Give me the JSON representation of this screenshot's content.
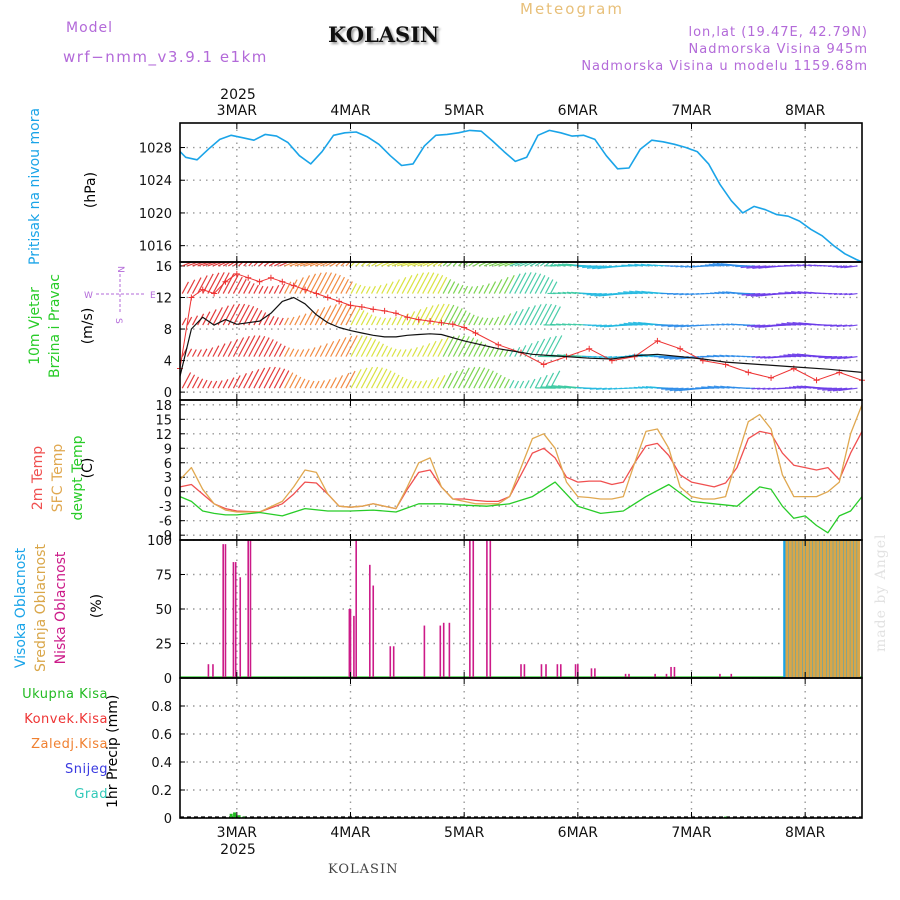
{
  "header": {
    "model_label": "Model",
    "model_name": "wrf−nmm_v3.9.1  e1km",
    "station_title": "KOLASIN",
    "meteogram_label": "Meteogram",
    "location": "lon,lat (19.47E, 42.79N)",
    "altitude": "Nadmorska Visina 945m",
    "model_altitude": "Nadmorska Visina u modelu 1159.68m",
    "credit": "made by Angel",
    "bottom_station": "KOLASIN"
  },
  "axis": {
    "year": "2025",
    "days": [
      "3MAR",
      "4MAR",
      "5MAR",
      "6MAR",
      "7MAR",
      "8MAR"
    ]
  },
  "panels": {
    "pressure": {
      "label": "Pritisak na nivou mora",
      "unit": "(hPa)"
    },
    "wind": {
      "label_1": "10m Vjetar",
      "label_2": "Brzina i Pravac",
      "unit": "(m/s)",
      "compass": [
        "N",
        "W",
        "E",
        "S"
      ]
    },
    "temperature": {
      "label_1": "2m Temp",
      "label_2": "SFC Temp",
      "label_3": "dewpt Temp",
      "unit": "(C)"
    },
    "cloud": {
      "label_1": "Visoka Oblacnost",
      "label_2": "Srednja Oblacnost",
      "label_3": "Niska Oblacnost",
      "unit": "(%)"
    },
    "precip": {
      "items": [
        "Ukupna Kisa",
        "Konvek.Kisa",
        "Zaledj.Kisa",
        "Snijeg",
        "Grad"
      ],
      "unit": "1hr Precip (mm)"
    }
  },
  "colors": {
    "pressure": "#1aa4e8",
    "t2m": "#f05050",
    "tsfc": "#e0a850",
    "dewpt": "#28cc28",
    "low_cloud": "#cc1a88",
    "mid_cloud": "#d9a648",
    "high_cloud": "#1aa4e8",
    "wind_speed": "#111111",
    "gust": "#ee3333",
    "total_rain": "#22bb22",
    "conv_rain": "#ee3333",
    "frz_rain": "#f08030",
    "snow": "#3a3ae0",
    "hail": "#30c8b8",
    "label_purple": "#b36ad9"
  },
  "chart_data": [
    {
      "type": "line",
      "name": "pressure",
      "ylabel": "Pritisak na nivou mora (hPa)",
      "ylim": [
        1014,
        1031
      ],
      "yticks": [
        1016,
        1020,
        1024,
        1028
      ],
      "xlim": [
        -0.5,
        5.5
      ],
      "grid": true,
      "series": [
        {
          "name": "Pritisak na nivou mora",
          "x": [
            -0.5,
            -0.45,
            -0.35,
            -0.25,
            -0.15,
            -0.05,
            0.05,
            0.15,
            0.25,
            0.35,
            0.45,
            0.55,
            0.65,
            0.75,
            0.85,
            0.95,
            1.05,
            1.15,
            1.25,
            1.35,
            1.45,
            1.55,
            1.65,
            1.75,
            1.85,
            1.95,
            2.05,
            2.15,
            2.25,
            2.35,
            2.45,
            2.55,
            2.65,
            2.75,
            2.85,
            2.95,
            3.05,
            3.15,
            3.25,
            3.35,
            3.45,
            3.55,
            3.65,
            3.75,
            3.85,
            3.95,
            4.05,
            4.15,
            4.25,
            4.35,
            4.45,
            4.55,
            4.65,
            4.75,
            4.85,
            4.95,
            5.05,
            5.15,
            5.25,
            5.35,
            5.45,
            5.5
          ],
          "y": [
            1027.5,
            1026.8,
            1026.5,
            1027.8,
            1029.0,
            1029.5,
            1029.2,
            1028.9,
            1029.6,
            1029.4,
            1028.6,
            1027.0,
            1026.0,
            1027.5,
            1029.5,
            1029.8,
            1029.9,
            1029.3,
            1028.4,
            1027.0,
            1025.8,
            1026.0,
            1028.2,
            1029.5,
            1029.6,
            1029.8,
            1030.1,
            1030.0,
            1028.8,
            1027.5,
            1026.3,
            1026.8,
            1029.5,
            1030.1,
            1029.8,
            1029.4,
            1029.5,
            1029.0,
            1027.0,
            1025.4,
            1025.5,
            1027.8,
            1028.9,
            1028.7,
            1028.4,
            1028.0,
            1027.5,
            1026.0,
            1023.5,
            1021.5,
            1020.0,
            1020.8,
            1020.4,
            1019.8,
            1019.6,
            1019.0,
            1018.0,
            1017.2,
            1016.0,
            1015.0,
            1014.3,
            1014.0
          ]
        }
      ]
    },
    {
      "type": "line",
      "name": "wind",
      "ylabel": "10m Vjetar Brzina i Pravac (m/s)",
      "ylim": [
        -1,
        16.5
      ],
      "yticks": [
        0,
        4,
        8,
        12,
        16
      ],
      "xlim": [
        -0.5,
        5.5
      ],
      "grid": true,
      "series": [
        {
          "name": "speed",
          "x": [
            -0.5,
            -0.4,
            -0.3,
            -0.2,
            -0.1,
            0.0,
            0.1,
            0.2,
            0.3,
            0.4,
            0.5,
            0.6,
            0.7,
            0.8,
            0.9,
            1.0,
            1.1,
            1.2,
            1.3,
            1.4,
            1.5,
            1.6,
            1.7,
            1.8,
            2.0,
            2.3,
            2.6,
            2.9,
            3.1,
            3.3,
            3.5,
            3.7,
            3.9,
            4.1,
            4.3,
            4.6,
            4.9,
            5.2,
            5.5
          ],
          "y": [
            2.0,
            8.0,
            9.5,
            8.5,
            9.2,
            8.6,
            8.8,
            9.0,
            10.0,
            11.5,
            12.0,
            11.2,
            9.8,
            8.8,
            8.2,
            7.8,
            7.5,
            7.2,
            7.0,
            7.0,
            7.2,
            7.3,
            7.4,
            7.3,
            6.5,
            5.5,
            4.8,
            4.5,
            4.3,
            4.2,
            4.6,
            4.8,
            4.5,
            4.2,
            3.8,
            3.5,
            3.2,
            2.9,
            2.5
          ]
        },
        {
          "name": "gust",
          "x": [
            -0.5,
            -0.4,
            -0.3,
            -0.2,
            -0.1,
            0.0,
            0.1,
            0.2,
            0.3,
            0.4,
            0.5,
            0.6,
            0.7,
            0.8,
            0.9,
            1.0,
            1.1,
            1.2,
            1.3,
            1.4,
            1.5,
            1.6,
            1.7,
            1.8,
            1.9,
            2.0,
            2.1,
            2.3,
            2.5,
            2.7,
            2.9,
            3.1,
            3.3,
            3.5,
            3.7,
            3.9,
            4.1,
            4.3,
            4.5,
            4.7,
            4.9,
            5.1,
            5.3,
            5.5
          ],
          "y": [
            3.0,
            12.0,
            13.0,
            12.5,
            14.0,
            15.0,
            14.5,
            14.0,
            14.5,
            14.0,
            13.5,
            13.0,
            12.5,
            12.0,
            11.5,
            11.0,
            10.8,
            10.5,
            10.3,
            10.0,
            9.5,
            9.2,
            9.0,
            8.8,
            8.6,
            8.2,
            7.5,
            6.0,
            5.0,
            3.5,
            4.5,
            5.5,
            4.0,
            4.5,
            6.5,
            5.5,
            4.0,
            3.5,
            2.5,
            1.8,
            3.0,
            1.5,
            2.5,
            1.5
          ]
        }
      ]
    },
    {
      "type": "line",
      "name": "temperature",
      "ylabel": "2m Temp / SFC Temp / dewpt Temp (C)",
      "ylim": [
        -10,
        19
      ],
      "yticks": [
        -9,
        -6,
        -3,
        0,
        3,
        6,
        9,
        12,
        15,
        18
      ],
      "xlim": [
        -0.5,
        5.5
      ],
      "grid": true,
      "series": [
        {
          "name": "2m Temp",
          "x": [
            -0.5,
            -0.4,
            -0.3,
            -0.2,
            -0.1,
            0.0,
            0.2,
            0.4,
            0.5,
            0.6,
            0.7,
            0.8,
            0.9,
            1.0,
            1.1,
            1.2,
            1.3,
            1.4,
            1.5,
            1.6,
            1.7,
            1.8,
            1.9,
            2.0,
            2.1,
            2.2,
            2.3,
            2.4,
            2.5,
            2.6,
            2.7,
            2.8,
            2.9,
            3.0,
            3.1,
            3.2,
            3.3,
            3.4,
            3.5,
            3.6,
            3.7,
            3.8,
            3.9,
            4.0,
            4.1,
            4.2,
            4.3,
            4.4,
            4.5,
            4.6,
            4.7,
            4.8,
            4.9,
            5.0,
            5.1,
            5.2,
            5.3,
            5.4,
            5.5
          ],
          "y": [
            1.0,
            1.5,
            -0.5,
            -2.5,
            -3.5,
            -4.0,
            -4.2,
            -2.5,
            -0.5,
            2.0,
            1.8,
            -0.5,
            -3.0,
            -3.2,
            -3.0,
            -2.5,
            -3.0,
            -3.5,
            0.5,
            4.0,
            4.5,
            1.0,
            -1.5,
            -1.5,
            -1.8,
            -2.0,
            -2.0,
            -1.0,
            3.5,
            8.0,
            9.0,
            7.0,
            3.0,
            2.0,
            2.2,
            2.2,
            1.5,
            2.0,
            6.0,
            9.5,
            10.0,
            7.5,
            3.5,
            2.0,
            1.5,
            1.0,
            1.8,
            5.0,
            11.0,
            12.5,
            12.0,
            8.0,
            5.5,
            5.0,
            4.5,
            5.0,
            2.5,
            8.0,
            12.5
          ]
        },
        {
          "name": "SFC Temp",
          "x": [
            -0.5,
            -0.4,
            -0.3,
            -0.2,
            -0.1,
            0.0,
            0.2,
            0.4,
            0.5,
            0.6,
            0.7,
            0.8,
            0.9,
            1.0,
            1.1,
            1.2,
            1.3,
            1.4,
            1.5,
            1.6,
            1.7,
            1.8,
            1.9,
            2.0,
            2.1,
            2.2,
            2.3,
            2.4,
            2.5,
            2.6,
            2.7,
            2.8,
            2.9,
            3.0,
            3.1,
            3.2,
            3.3,
            3.4,
            3.5,
            3.6,
            3.7,
            3.8,
            3.9,
            4.0,
            4.1,
            4.2,
            4.3,
            4.4,
            4.5,
            4.6,
            4.7,
            4.8,
            4.9,
            5.0,
            5.1,
            5.2,
            5.3,
            5.4,
            5.5
          ],
          "y": [
            2.5,
            5.0,
            0.5,
            -2.5,
            -3.8,
            -4.2,
            -4.2,
            -2.0,
            1.0,
            4.5,
            4.0,
            -0.5,
            -3.0,
            -3.2,
            -3.0,
            -2.5,
            -3.0,
            -3.5,
            1.0,
            6.0,
            7.0,
            1.0,
            -1.5,
            -2.0,
            -2.5,
            -2.5,
            -2.5,
            -1.0,
            5.0,
            11.0,
            12.0,
            9.0,
            2.0,
            -1.0,
            -1.2,
            -1.5,
            -1.5,
            -1.0,
            6.0,
            12.5,
            13.0,
            9.0,
            1.0,
            -1.0,
            -1.5,
            -1.5,
            -1.0,
            7.0,
            14.5,
            16.0,
            13.0,
            3.5,
            -1.0,
            -1.0,
            -1.0,
            0.0,
            2.0,
            12.0,
            18.0
          ]
        },
        {
          "name": "dewpt Temp",
          "x": [
            -0.5,
            -0.4,
            -0.3,
            -0.2,
            -0.1,
            0.0,
            0.2,
            0.4,
            0.6,
            0.8,
            1.0,
            1.2,
            1.4,
            1.6,
            1.8,
            2.0,
            2.2,
            2.4,
            2.6,
            2.8,
            3.0,
            3.2,
            3.4,
            3.6,
            3.8,
            4.0,
            4.2,
            4.4,
            4.5,
            4.6,
            4.7,
            4.8,
            4.9,
            5.0,
            5.1,
            5.2,
            5.3,
            5.4,
            5.5
          ],
          "y": [
            -1.0,
            -2.0,
            -4.0,
            -4.5,
            -4.8,
            -4.8,
            -4.3,
            -5.0,
            -3.5,
            -4.0,
            -4.0,
            -3.8,
            -4.2,
            -2.5,
            -2.5,
            -2.8,
            -3.0,
            -2.5,
            -1.0,
            2.0,
            -3.0,
            -4.5,
            -4.0,
            -1.0,
            1.5,
            -2.0,
            -2.5,
            -3.0,
            -1.0,
            1.0,
            0.5,
            -3.0,
            -5.5,
            -5.0,
            -7.0,
            -8.5,
            -5.0,
            -4.0,
            -1.0
          ]
        }
      ]
    },
    {
      "type": "bar",
      "name": "cloud",
      "ylabel": "Oblacnost (%)",
      "ylim": [
        0,
        100
      ],
      "yticks": [
        0,
        25,
        50,
        75,
        100
      ],
      "xlim": [
        -0.5,
        5.5
      ],
      "grid": true,
      "series": [
        {
          "name": "Niska Oblacnost",
          "x": [
            -0.25,
            -0.21,
            -0.12,
            -0.1,
            -0.03,
            -0.01,
            0.03,
            0.1,
            0.12,
            1.05,
            1.0,
            0.99,
            1.03,
            1.17,
            1.2,
            1.35,
            1.38,
            1.65,
            1.79,
            1.82,
            1.87,
            2.05,
            2.08,
            2.2,
            2.23,
            2.5,
            2.53,
            2.68,
            2.72,
            2.82,
            2.85,
            2.98,
            3.0,
            3.12,
            3.15,
            3.42,
            3.45,
            3.68,
            3.78,
            3.82,
            3.85,
            4.25,
            4.35
          ],
          "y": [
            10,
            10,
            97,
            97,
            84,
            84,
            73,
            100,
            100,
            100,
            50,
            50,
            45,
            82,
            67,
            23,
            23,
            38,
            38,
            40,
            40,
            100,
            100,
            100,
            100,
            10,
            10,
            10,
            10,
            10,
            10,
            10,
            10,
            7,
            7,
            3,
            3,
            3,
            3,
            8,
            8,
            3,
            3
          ]
        },
        {
          "name": "Visoka Oblacnost",
          "x": [
            4.82,
            4.85,
            4.88,
            4.91,
            4.94,
            4.97,
            5.0,
            5.03,
            5.06,
            5.09,
            5.12,
            5.15,
            5.18,
            5.21,
            5.24,
            5.27,
            5.3,
            5.33,
            5.36,
            5.39,
            5.42,
            5.45
          ],
          "y": [
            100,
            100,
            100,
            100,
            100,
            100,
            100,
            100,
            100,
            100,
            100,
            100,
            100,
            100,
            100,
            100,
            100,
            100,
            100,
            100,
            100,
            100
          ]
        },
        {
          "name": "Srednja Oblacnost",
          "x": [
            4.84,
            4.87,
            4.9,
            4.93,
            4.96,
            4.99,
            5.02,
            5.05,
            5.08,
            5.11,
            5.14,
            5.17,
            5.2,
            5.23,
            5.26,
            5.29,
            5.32,
            5.35,
            5.38,
            5.41,
            5.44,
            5.47
          ],
          "y": [
            100,
            100,
            100,
            100,
            100,
            100,
            100,
            100,
            100,
            100,
            100,
            100,
            100,
            100,
            100,
            100,
            100,
            100,
            100,
            100,
            100,
            100
          ]
        }
      ]
    },
    {
      "type": "bar",
      "name": "precip",
      "ylabel": "1hr Precip (mm)",
      "ylim": [
        0,
        1.0
      ],
      "yticks": [
        0,
        0.2,
        0.4,
        0.6,
        0.8
      ],
      "xlim": [
        -0.5,
        5.5
      ],
      "grid": true,
      "series": [
        {
          "name": "Ukupna Kisa",
          "x": [
            -0.05,
            -0.02,
            0.02,
            0.06,
            4.3
          ],
          "y": [
            0.03,
            0.04,
            0.02,
            0.01,
            0.01
          ]
        }
      ]
    }
  ]
}
